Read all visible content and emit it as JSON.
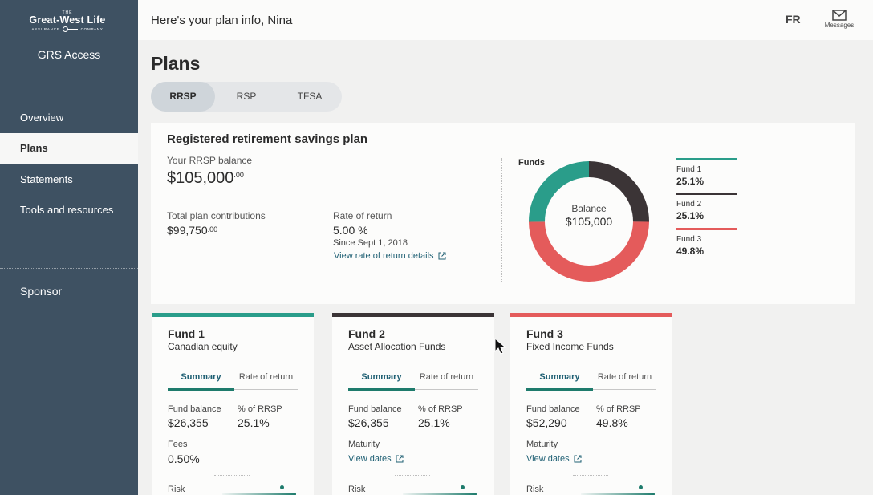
{
  "sidebar": {
    "logo": {
      "the": "THE",
      "name": "Great-West Life",
      "left": "ASSURANCE",
      "right": "COMPANY"
    },
    "app_name": "GRS Access",
    "items": [
      {
        "label": "Overview",
        "active": false
      },
      {
        "label": "Plans",
        "active": true
      },
      {
        "label": "Statements",
        "active": false
      },
      {
        "label": "Tools and resources",
        "active": false
      }
    ],
    "sponsor": "Sponsor"
  },
  "header": {
    "greeting": "Here's your plan info, Nina",
    "lang": "FR",
    "messages": "Messages"
  },
  "page": {
    "title": "Plans",
    "tabs": [
      {
        "label": "RRSP",
        "active": true
      },
      {
        "label": "RSP",
        "active": false
      },
      {
        "label": "TFSA",
        "active": false
      }
    ]
  },
  "plan": {
    "title": "Registered retirement savings plan",
    "balance_label": "Your RRSP balance",
    "balance_main": "$105,000",
    "balance_cents": ".00",
    "contrib_label": "Total plan contributions",
    "contrib_main": "$99,750",
    "contrib_cents": ".00",
    "return_label": "Rate of return",
    "return_value": "5.00 %",
    "return_since": "Since Sept 1, 2018",
    "return_link": "View rate of return details",
    "funds_label": "Funds",
    "donut_label": "Balance",
    "donut_value": "$105,000"
  },
  "colors": {
    "fund1": "#2a9d8a",
    "fund2": "#3b3436",
    "fund3": "#e45b5b",
    "accent": "#1e7b6c",
    "link": "#1e5f73"
  },
  "chart_data": {
    "type": "pie",
    "title": "Funds",
    "categories": [
      "Fund 1",
      "Fund 2",
      "Fund 3"
    ],
    "values": [
      25.1,
      25.1,
      49.8
    ],
    "center_label": "Balance",
    "center_value": "$105,000",
    "legend": "right"
  },
  "legend": [
    {
      "name": "Fund 1",
      "pct": "25.1%"
    },
    {
      "name": "Fund 2",
      "pct": "25.1%"
    },
    {
      "name": "Fund 3",
      "pct": "49.8%"
    }
  ],
  "funds": [
    {
      "name": "Fund 1",
      "subtitle": "Canadian equity",
      "tab_summary": "Summary",
      "tab_return": "Rate of return",
      "balance_label": "Fund balance",
      "balance": "$26,355",
      "pct_label": "% of RRSP",
      "pct": "25.1%",
      "extra_label": "Fees",
      "extra_value": "0.50%",
      "extra_is_link": false,
      "risk_label": "Risk"
    },
    {
      "name": "Fund 2",
      "subtitle": "Asset Allocation Funds",
      "tab_summary": "Summary",
      "tab_return": "Rate of return",
      "balance_label": "Fund balance",
      "balance": "$26,355",
      "pct_label": "% of RRSP",
      "pct": "25.1%",
      "extra_label": "Maturity",
      "extra_value": "View dates",
      "extra_is_link": true,
      "risk_label": "Risk"
    },
    {
      "name": "Fund 3",
      "subtitle": "Fixed Income Funds",
      "tab_summary": "Summary",
      "tab_return": "Rate of return",
      "balance_label": "Fund balance",
      "balance": "$52,290",
      "pct_label": "% of RRSP",
      "pct": "49.8%",
      "extra_label": "Maturity",
      "extra_value": "View dates",
      "extra_is_link": true,
      "risk_label": "Risk"
    }
  ]
}
